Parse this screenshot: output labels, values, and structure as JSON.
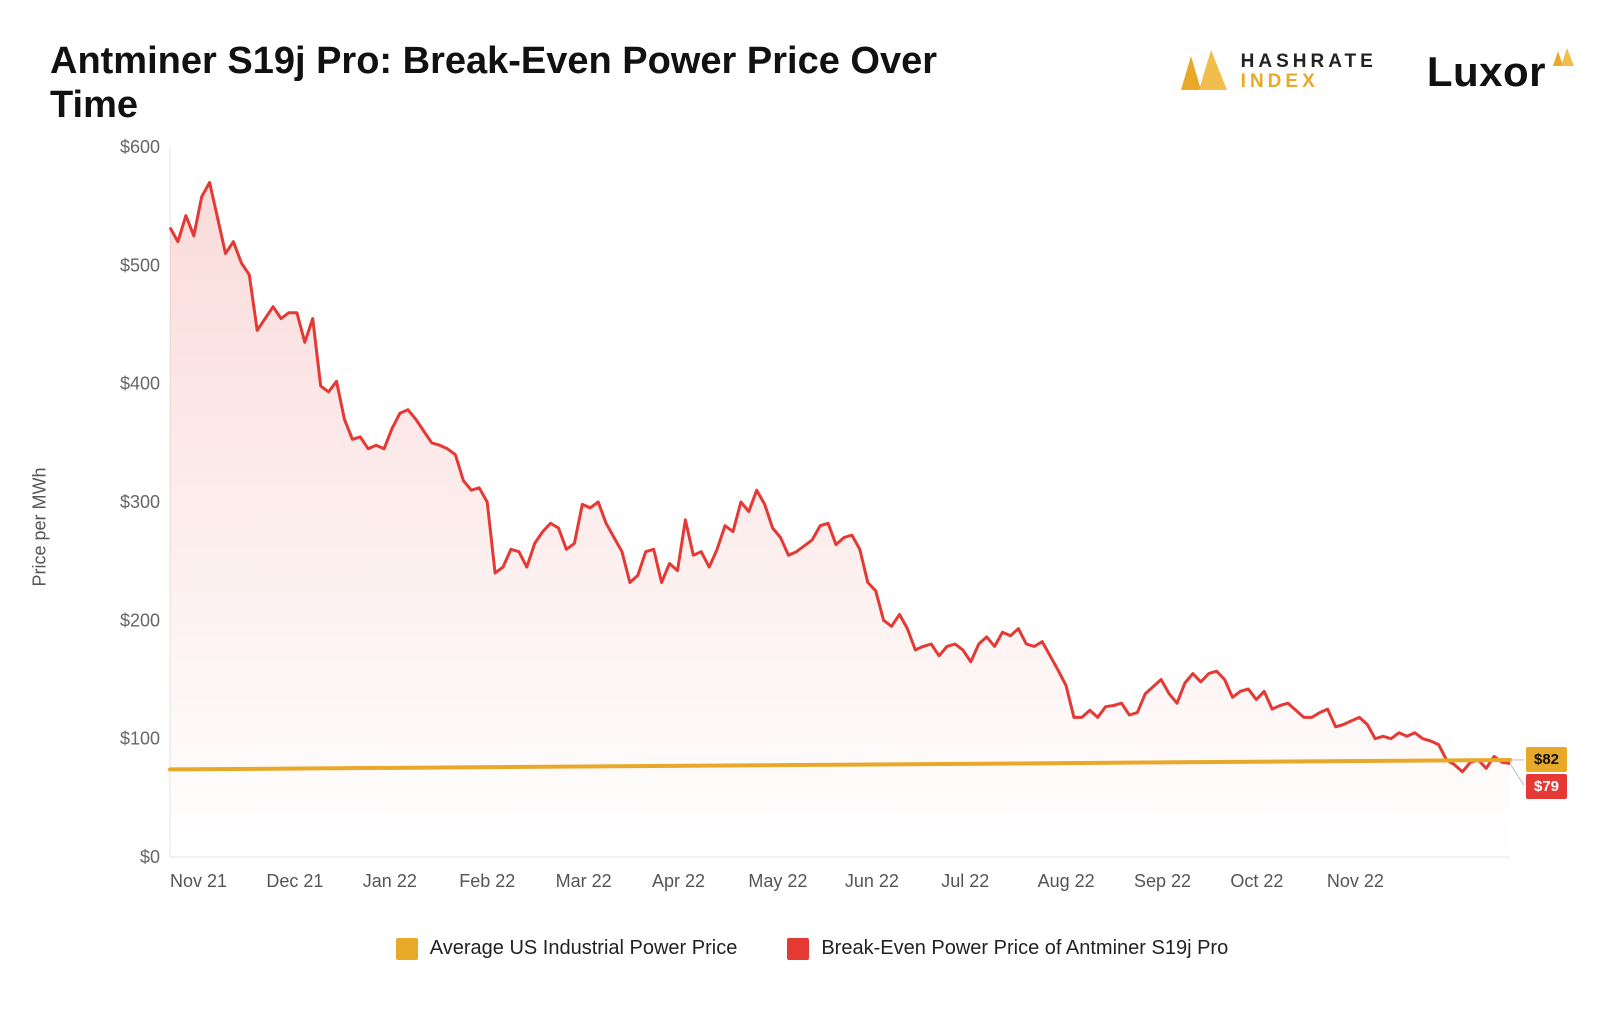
{
  "title": "Antminer S19j Pro: Break-Even Power Price Over Time",
  "logos": {
    "hashrate_top": "HASHRATE",
    "hashrate_bottom": "INDEX",
    "luxor": "Luxor"
  },
  "ylabel": "Price per MWh",
  "chart": {
    "type": "area-line",
    "background_color": "#ffffff",
    "grid_color": "#f0f0f0",
    "axis_color": "#e5e5e5",
    "tick_color": "#888888",
    "tick_fontsize": 18,
    "title_fontsize": 38,
    "ylabel_fontsize": 18,
    "ylim": [
      0,
      600
    ],
    "ytick_step": 100,
    "ytick_prefix": "$",
    "x_labels": [
      "Nov 21",
      "Dec 21",
      "Jan 22",
      "Feb 22",
      "Mar 22",
      "Apr 22",
      "May 22",
      "Jun 22",
      "Jul 22",
      "Aug 22",
      "Sep 22",
      "Oct 22",
      "Nov 22"
    ],
    "area_fill_top": "rgba(229,57,53,0.18)",
    "area_fill_bottom": "rgba(229,57,53,0.00)",
    "line_width": 3,
    "series": {
      "breakeven": {
        "label": "Break-Even Power Price of Antminer S19j Pro",
        "color": "#e53935",
        "end_value": 79,
        "end_label": "$79",
        "values": [
          532,
          520,
          542,
          525,
          558,
          570,
          540,
          510,
          520,
          502,
          492,
          445,
          455,
          465,
          455,
          460,
          460,
          435,
          455,
          398,
          393,
          402,
          370,
          353,
          355,
          345,
          348,
          345,
          362,
          375,
          378,
          370,
          360,
          350,
          348,
          345,
          340,
          318,
          310,
          312,
          300,
          240,
          245,
          260,
          258,
          245,
          265,
          275,
          282,
          278,
          260,
          265,
          298,
          295,
          300,
          282,
          270,
          258,
          232,
          238,
          258,
          260,
          232,
          248,
          242,
          285,
          255,
          258,
          245,
          260,
          280,
          275,
          300,
          292,
          310,
          298,
          278,
          270,
          255,
          258,
          263,
          268,
          280,
          282,
          264,
          270,
          272,
          260,
          232,
          225,
          200,
          195,
          205,
          193,
          175,
          178,
          180,
          170,
          178,
          180,
          175,
          165,
          180,
          186,
          178,
          190,
          187,
          193,
          180,
          178,
          182,
          170,
          158,
          145,
          118,
          118,
          124,
          118,
          127,
          128,
          130,
          120,
          122,
          138,
          144,
          150,
          138,
          130,
          147,
          155,
          148,
          155,
          157,
          150,
          135,
          140,
          142,
          133,
          140,
          125,
          128,
          130,
          124,
          118,
          118,
          122,
          125,
          110,
          112,
          115,
          118,
          112,
          100,
          102,
          100,
          105,
          102,
          105,
          100,
          98,
          95,
          82,
          78,
          72,
          80,
          82,
          75,
          85,
          80,
          79
        ]
      },
      "uspower": {
        "label": "Average US Industrial Power Price",
        "color": "#e8a828",
        "end_value": 82,
        "end_label": "$82",
        "start": 74,
        "end": 82
      }
    }
  },
  "legend": {
    "items": [
      {
        "color": "#e8a828",
        "label": "Average US Industrial Power Price"
      },
      {
        "color": "#e53935",
        "label": "Break-Even Power Price of Antminer S19j Pro"
      }
    ]
  }
}
